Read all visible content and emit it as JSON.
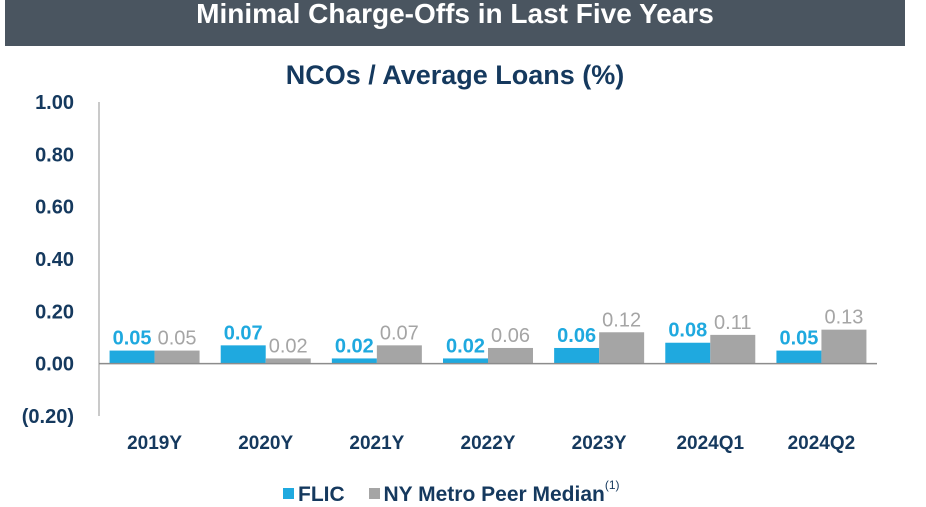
{
  "header": {
    "banner_title": "Minimal Charge-Offs in Last Five Years"
  },
  "chart_data": {
    "type": "bar",
    "title": "NCOs / Average Loans (%)",
    "categories": [
      "2019Y",
      "2020Y",
      "2021Y",
      "2022Y",
      "2023Y",
      "2024Q1",
      "2024Q2"
    ],
    "series": [
      {
        "name": "FLIC",
        "color": "#1fa9df",
        "label_color": "#1fa9df",
        "values": [
          0.05,
          0.07,
          0.02,
          0.02,
          0.06,
          0.08,
          0.05
        ],
        "labels": [
          "0.05",
          "0.07",
          "0.02",
          "0.02",
          "0.06",
          "0.08",
          "0.05"
        ]
      },
      {
        "name": "NY Metro Peer Median",
        "color": "#a5a5a5",
        "label_color": "#a5a5a5",
        "values": [
          0.05,
          0.02,
          0.07,
          0.06,
          0.12,
          0.11,
          0.13
        ],
        "labels": [
          "0.05",
          "0.02",
          "0.07",
          "0.06",
          "0.12",
          "0.11",
          "0.13"
        ]
      }
    ],
    "ylim": [
      -0.2,
      1.0
    ],
    "yticks": [
      1.0,
      0.8,
      0.6,
      0.4,
      0.2,
      0.0,
      -0.2
    ],
    "ytick_labels": [
      "1.00",
      "0.80",
      "0.60",
      "0.40",
      "0.20",
      "0.00",
      "(0.20)"
    ],
    "xlabel": "",
    "ylabel": "",
    "grid": false,
    "legend": {
      "position": "bottom",
      "footnote_marker": "(1)"
    }
  }
}
